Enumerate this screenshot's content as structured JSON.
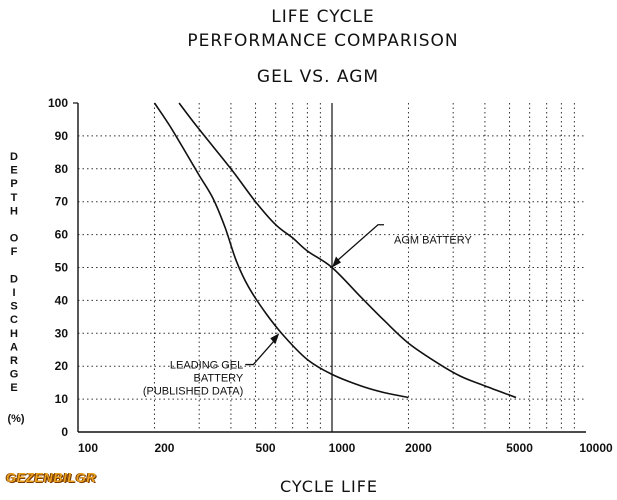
{
  "chart_data": {
    "type": "line",
    "title": [
      "LIFE CYCLE",
      "PERFORMANCE COMPARISON"
    ],
    "subtitle": "GEL VS. AGM",
    "xlabel": "CYCLE LIFE",
    "ylabel_letters": [
      "D",
      "E",
      "P",
      "T",
      "H",
      "",
      "O",
      "F",
      "",
      "D",
      "I",
      "S",
      "C",
      "H",
      "A",
      "R",
      "G",
      "E"
    ],
    "ylabel_unit": "(%)",
    "x_scale": "log",
    "xlim": [
      100,
      10000
    ],
    "ylim": [
      0,
      100
    ],
    "x_ticks": [
      "100",
      "200",
      "500",
      "1000",
      "2000",
      "5000",
      "10000"
    ],
    "y_ticks": [
      "0",
      "10",
      "20",
      "30",
      "40",
      "50",
      "60",
      "70",
      "80",
      "90",
      "100"
    ],
    "grid": "dotted",
    "reference_line_x": 1000,
    "series": [
      {
        "name": "AGM BATTERY",
        "points": [
          [
            250,
            100
          ],
          [
            300,
            92
          ],
          [
            400,
            80
          ],
          [
            500,
            70
          ],
          [
            600,
            63
          ],
          [
            700,
            59
          ],
          [
            800,
            55
          ],
          [
            1000,
            50
          ],
          [
            1300,
            41
          ],
          [
            1600,
            34
          ],
          [
            2000,
            27
          ],
          [
            2600,
            21
          ],
          [
            3200,
            17
          ],
          [
            4000,
            14
          ],
          [
            5300,
            10.5
          ]
        ]
      },
      {
        "name": "LEADING GEL BATTERY (PUBLISHED DATA)",
        "points": [
          [
            200,
            100
          ],
          [
            230,
            93
          ],
          [
            270,
            84
          ],
          [
            300,
            78
          ],
          [
            340,
            71
          ],
          [
            380,
            62
          ],
          [
            420,
            52
          ],
          [
            470,
            44
          ],
          [
            550,
            36
          ],
          [
            650,
            29
          ],
          [
            800,
            22
          ],
          [
            1000,
            17.5
          ],
          [
            1300,
            14
          ],
          [
            1600,
            12
          ],
          [
            2000,
            10.5
          ]
        ]
      }
    ],
    "annotations": {
      "agm": "AGM BATTERY",
      "gel_lines": [
        "LEADING GEL",
        "BATTERY",
        "(PUBLISHED DATA)"
      ]
    }
  },
  "watermark": "GEZENBILGR"
}
